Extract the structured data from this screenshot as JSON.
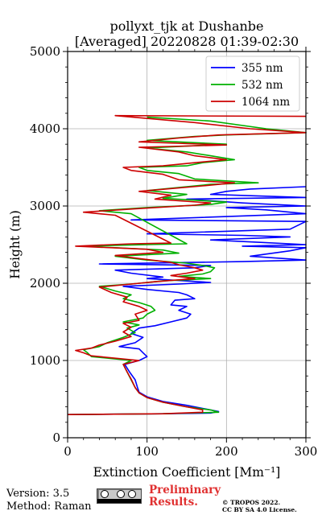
{
  "chart_data": {
    "type": "line",
    "title_line1": "pollyxt_tjk at Dushanbe",
    "title_line2": "[Averaged] 20220828 01:39-02:30",
    "xlabel": "Extinction Coefficient [Mm⁻¹]",
    "ylabel": "Height (m)",
    "xlim": [
      0,
      300
    ],
    "ylim": [
      0,
      5000
    ],
    "xticks": [
      "0",
      "100",
      "200",
      "300"
    ],
    "yticks": [
      "0",
      "1000",
      "2000",
      "3000",
      "4000",
      "5000"
    ],
    "grid": true,
    "legend_position": "top-right",
    "series": [
      {
        "name": "355 nm",
        "color": "#0000ff",
        "points": [
          [
            0,
            300
          ],
          [
            120,
            310
          ],
          [
            180,
            320
          ],
          [
            190,
            340
          ],
          [
            170,
            380
          ],
          [
            150,
            420
          ],
          [
            120,
            470
          ],
          [
            100,
            530
          ],
          [
            90,
            590
          ],
          [
            88,
            650
          ],
          [
            85,
            750
          ],
          [
            78,
            850
          ],
          [
            72,
            950
          ],
          [
            90,
            1000
          ],
          [
            100,
            1050
          ],
          [
            95,
            1100
          ],
          [
            90,
            1150
          ],
          [
            65,
            1180
          ],
          [
            85,
            1230
          ],
          [
            95,
            1300
          ],
          [
            80,
            1350
          ],
          [
            90,
            1420
          ],
          [
            110,
            1450
          ],
          [
            130,
            1500
          ],
          [
            150,
            1550
          ],
          [
            155,
            1600
          ],
          [
            140,
            1650
          ],
          [
            150,
            1700
          ],
          [
            130,
            1720
          ],
          [
            135,
            1780
          ],
          [
            160,
            1800
          ],
          [
            150,
            1850
          ],
          [
            140,
            1880
          ],
          [
            100,
            1920
          ],
          [
            70,
            1960
          ],
          [
            140,
            1990
          ],
          [
            180,
            2010
          ],
          [
            100,
            2060
          ],
          [
            120,
            2080
          ],
          [
            80,
            2130
          ],
          [
            60,
            2170
          ],
          [
            160,
            2200
          ],
          [
            180,
            2230
          ],
          [
            40,
            2250
          ],
          [
            220,
            2280
          ],
          [
            300,
            2300
          ],
          [
            230,
            2350
          ],
          [
            280,
            2420
          ],
          [
            300,
            2460
          ],
          [
            220,
            2480
          ],
          [
            300,
            2500
          ],
          [
            240,
            2530
          ],
          [
            180,
            2560
          ],
          [
            280,
            2600
          ],
          [
            220,
            2620
          ],
          [
            100,
            2640
          ],
          [
            280,
            2700
          ],
          [
            300,
            2800
          ],
          [
            80,
            2820
          ],
          [
            300,
            2900
          ],
          [
            250,
            2950
          ],
          [
            200,
            2980
          ],
          [
            300,
            3000
          ],
          [
            220,
            3040
          ],
          [
            150,
            3090
          ],
          [
            300,
            3110
          ],
          [
            180,
            3150
          ],
          [
            200,
            3190
          ],
          [
            230,
            3220
          ],
          [
            300,
            3250
          ]
        ]
      },
      {
        "name": "532 nm",
        "color": "#00b000",
        "points": [
          [
            0,
            300
          ],
          [
            120,
            310
          ],
          [
            190,
            330
          ],
          [
            180,
            360
          ],
          [
            150,
            400
          ],
          [
            120,
            460
          ],
          [
            100,
            520
          ],
          [
            90,
            580
          ],
          [
            85,
            650
          ],
          [
            80,
            750
          ],
          [
            75,
            850
          ],
          [
            70,
            950
          ],
          [
            80,
            1000
          ],
          [
            30,
            1050
          ],
          [
            25,
            1100
          ],
          [
            20,
            1140
          ],
          [
            40,
            1180
          ],
          [
            50,
            1230
          ],
          [
            70,
            1300
          ],
          [
            85,
            1360
          ],
          [
            75,
            1420
          ],
          [
            90,
            1460
          ],
          [
            70,
            1500
          ],
          [
            95,
            1550
          ],
          [
            100,
            1600
          ],
          [
            110,
            1650
          ],
          [
            105,
            1700
          ],
          [
            90,
            1750
          ],
          [
            70,
            1800
          ],
          [
            80,
            1850
          ],
          [
            60,
            1900
          ],
          [
            40,
            1960
          ],
          [
            80,
            1990
          ],
          [
            120,
            2030
          ],
          [
            180,
            2060
          ],
          [
            140,
            2090
          ],
          [
            170,
            2120
          ],
          [
            180,
            2150
          ],
          [
            185,
            2200
          ],
          [
            170,
            2230
          ],
          [
            150,
            2260
          ],
          [
            100,
            2300
          ],
          [
            60,
            2350
          ],
          [
            140,
            2390
          ],
          [
            120,
            2430
          ],
          [
            20,
            2480
          ],
          [
            100,
            2500
          ],
          [
            150,
            2510
          ],
          [
            80,
            2900
          ],
          [
            40,
            2940
          ],
          [
            100,
            2980
          ],
          [
            180,
            3020
          ],
          [
            200,
            3050
          ],
          [
            120,
            3100
          ],
          [
            150,
            3150
          ],
          [
            100,
            3200
          ],
          [
            180,
            3280
          ],
          [
            240,
            3300
          ],
          [
            160,
            3350
          ],
          [
            140,
            3420
          ],
          [
            100,
            3460
          ],
          [
            90,
            3500
          ],
          [
            150,
            3520
          ],
          [
            170,
            3560
          ],
          [
            210,
            3600
          ],
          [
            180,
            3650
          ],
          [
            150,
            3700
          ],
          [
            100,
            3750
          ],
          [
            200,
            3800
          ],
          [
            100,
            3850
          ],
          [
            160,
            3900
          ],
          [
            200,
            3920
          ],
          [
            300,
            3950
          ],
          [
            250,
            4000
          ],
          [
            180,
            4100
          ],
          [
            100,
            4150
          ]
        ]
      },
      {
        "name": "1064 nm",
        "color": "#cc0000",
        "points": [
          [
            0,
            300
          ],
          [
            120,
            310
          ],
          [
            170,
            330
          ],
          [
            170,
            360
          ],
          [
            150,
            400
          ],
          [
            120,
            460
          ],
          [
            100,
            520
          ],
          [
            90,
            580
          ],
          [
            85,
            650
          ],
          [
            80,
            760
          ],
          [
            75,
            850
          ],
          [
            70,
            950
          ],
          [
            90,
            1000
          ],
          [
            30,
            1060
          ],
          [
            20,
            1100
          ],
          [
            10,
            1130
          ],
          [
            30,
            1160
          ],
          [
            40,
            1200
          ],
          [
            60,
            1250
          ],
          [
            80,
            1310
          ],
          [
            70,
            1370
          ],
          [
            80,
            1430
          ],
          [
            70,
            1480
          ],
          [
            90,
            1520
          ],
          [
            85,
            1600
          ],
          [
            100,
            1650
          ],
          [
            90,
            1700
          ],
          [
            70,
            1760
          ],
          [
            75,
            1820
          ],
          [
            55,
            1880
          ],
          [
            40,
            1950
          ],
          [
            80,
            1990
          ],
          [
            110,
            2020
          ],
          [
            160,
            2060
          ],
          [
            130,
            2100
          ],
          [
            150,
            2130
          ],
          [
            170,
            2170
          ],
          [
            160,
            2200
          ],
          [
            140,
            2240
          ],
          [
            130,
            2270
          ],
          [
            90,
            2320
          ],
          [
            60,
            2360
          ],
          [
            120,
            2400
          ],
          [
            100,
            2440
          ],
          [
            10,
            2480
          ],
          [
            80,
            2510
          ],
          [
            130,
            2520
          ],
          [
            60,
            2880
          ],
          [
            20,
            2920
          ],
          [
            80,
            2960
          ],
          [
            160,
            3010
          ],
          [
            180,
            3040
          ],
          [
            110,
            3090
          ],
          [
            130,
            3140
          ],
          [
            90,
            3190
          ],
          [
            170,
            3260
          ],
          [
            210,
            3300
          ],
          [
            140,
            3340
          ],
          [
            120,
            3410
          ],
          [
            80,
            3460
          ],
          [
            70,
            3500
          ],
          [
            120,
            3520
          ],
          [
            160,
            3560
          ],
          [
            200,
            3600
          ],
          [
            160,
            3650
          ],
          [
            140,
            3700
          ],
          [
            90,
            3760
          ],
          [
            200,
            3790
          ],
          [
            90,
            3830
          ],
          [
            140,
            3880
          ],
          [
            190,
            3920
          ],
          [
            300,
            3950
          ],
          [
            230,
            4000
          ],
          [
            160,
            4080
          ],
          [
            60,
            4170
          ],
          [
            300,
            4160
          ]
        ]
      }
    ]
  },
  "footer": {
    "version": "Version: 3.5",
    "method": "Method: Raman",
    "preliminary_line1": "Preliminary",
    "preliminary_line2": "Results.",
    "copyright_line1": "© TROPOS 2022.",
    "copyright_line2": "CC BY SA 4.0 License.",
    "license_badge_text": "CC BY SA"
  }
}
